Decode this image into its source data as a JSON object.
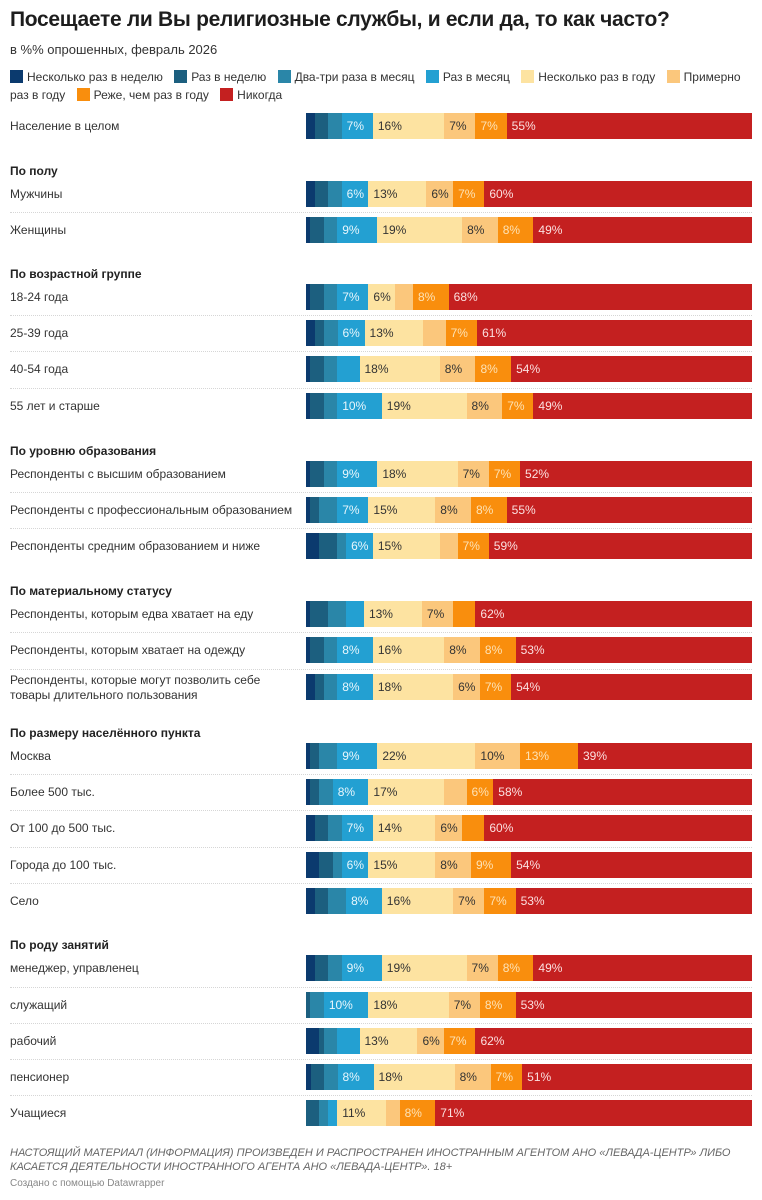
{
  "chart_data": {
    "type": "bar",
    "orientation": "horizontal-stacked-100",
    "title": "Посещаете ли Вы религиозные службы, и если да, то как часто?",
    "subtitle": "в %% опрошенных, февраль 2026",
    "xlabel": "",
    "ylabel": "",
    "xlim": [
      0,
      100
    ],
    "legend_position": "top",
    "series": [
      {
        "name": "Несколько раз в неделю",
        "color": "#0b3a6e",
        "label_color": "#ffffff"
      },
      {
        "name": "Раз в неделю",
        "color": "#1c5f7f",
        "label_color": "#ffffff"
      },
      {
        "name": "Два-три раза в месяц",
        "color": "#2a86a8",
        "label_color": "#ffffff"
      },
      {
        "name": "Раз в месяц",
        "color": "#23a0d2",
        "label_color": "#e8f6fc"
      },
      {
        "name": "Несколько раз в году",
        "color": "#fde3a1",
        "label_color": "#333333"
      },
      {
        "name": "Примерно раз в году",
        "color": "#fbc77c",
        "label_color": "#333333"
      },
      {
        "name": "Реже, чем раз в году",
        "color": "#f98e0d",
        "label_color": "#fde2b5"
      },
      {
        "name": "Никогда",
        "color": "#c42020",
        "label_color": "#fbe0e0"
      }
    ],
    "groups": [
      {
        "title": "",
        "rows": [
          {
            "label": "Население в целом",
            "values": [
              2,
              3,
              3,
              7,
              16,
              7,
              7,
              55
            ],
            "labeled": [
              false,
              false,
              false,
              true,
              true,
              true,
              true,
              true
            ]
          }
        ]
      },
      {
        "title": "По полу",
        "rows": [
          {
            "label": "Мужчины",
            "values": [
              2,
              3,
              3,
              6,
              13,
              6,
              7,
              60
            ],
            "labeled": [
              false,
              false,
              false,
              true,
              true,
              true,
              true,
              true
            ]
          },
          {
            "label": "Женщины",
            "values": [
              1,
              3,
              3,
              9,
              19,
              8,
              8,
              49
            ],
            "labeled": [
              false,
              false,
              false,
              true,
              true,
              true,
              true,
              true
            ]
          }
        ]
      },
      {
        "title": "По возрастной группе",
        "rows": [
          {
            "label": "18-24 года",
            "values": [
              1,
              3,
              3,
              7,
              6,
              4,
              8,
              68
            ],
            "labeled": [
              false,
              false,
              false,
              true,
              true,
              false,
              true,
              true
            ]
          },
          {
            "label": "25-39 года",
            "values": [
              2,
              2,
              3,
              6,
              13,
              5,
              7,
              61
            ],
            "labeled": [
              false,
              false,
              false,
              true,
              true,
              false,
              true,
              true
            ]
          },
          {
            "label": "40-54 года",
            "values": [
              1,
              3,
              3,
              5,
              18,
              8,
              8,
              54
            ],
            "labeled": [
              false,
              false,
              false,
              false,
              true,
              true,
              true,
              true
            ]
          },
          {
            "label": "55 лет и старше",
            "values": [
              1,
              3,
              3,
              10,
              19,
              8,
              7,
              49
            ],
            "labeled": [
              false,
              false,
              false,
              true,
              true,
              true,
              true,
              true
            ]
          }
        ]
      },
      {
        "title": "По уровню образования",
        "rows": [
          {
            "label": "Респонденты с высшим образованием",
            "values": [
              1,
              3,
              3,
              9,
              18,
              7,
              7,
              52
            ],
            "labeled": [
              false,
              false,
              false,
              true,
              true,
              true,
              true,
              true
            ]
          },
          {
            "label": "Респонденты с профессиональным образованием",
            "values": [
              1,
              2,
              4,
              7,
              15,
              8,
              8,
              55
            ],
            "labeled": [
              false,
              false,
              false,
              true,
              true,
              true,
              true,
              true
            ]
          },
          {
            "label": "Респонденты средним образованием и ниже",
            "values": [
              3,
              4,
              2,
              6,
              15,
              4,
              7,
              59
            ],
            "labeled": [
              false,
              false,
              false,
              true,
              true,
              false,
              true,
              true
            ]
          }
        ]
      },
      {
        "title": "По материальному статусу",
        "rows": [
          {
            "label": "Респонденты, которым едва хватает на еду",
            "values": [
              1,
              4,
              4,
              4,
              13,
              7,
              5,
              62
            ],
            "labeled": [
              false,
              false,
              false,
              false,
              true,
              true,
              false,
              true
            ]
          },
          {
            "label": "Респонденты, которым хватает на одежду",
            "values": [
              1,
              3,
              3,
              8,
              16,
              8,
              8,
              53
            ],
            "labeled": [
              false,
              false,
              false,
              true,
              true,
              true,
              true,
              true
            ]
          },
          {
            "label": "Респонденты, которые могут позволить себе товары длительного пользования",
            "values": [
              2,
              2,
              3,
              8,
              18,
              6,
              7,
              54
            ],
            "labeled": [
              false,
              false,
              false,
              true,
              true,
              true,
              true,
              true
            ]
          }
        ]
      },
      {
        "title": "По размеру населённого пункта",
        "rows": [
          {
            "label": "Москва",
            "values": [
              1,
              2,
              4,
              9,
              22,
              10,
              13,
              39
            ],
            "labeled": [
              false,
              false,
              false,
              true,
              true,
              true,
              true,
              true
            ]
          },
          {
            "label": "Более 500 тыс.",
            "values": [
              1,
              2,
              3,
              8,
              17,
              5,
              6,
              58
            ],
            "labeled": [
              false,
              false,
              false,
              true,
              true,
              false,
              true,
              true
            ]
          },
          {
            "label": "От 100 до 500 тыс.",
            "values": [
              2,
              3,
              3,
              7,
              14,
              6,
              5,
              60
            ],
            "labeled": [
              false,
              false,
              false,
              true,
              true,
              true,
              false,
              true
            ]
          },
          {
            "label": "Города до 100 тыс.",
            "values": [
              3,
              3,
              2,
              6,
              15,
              8,
              9,
              54
            ],
            "labeled": [
              false,
              false,
              false,
              true,
              true,
              true,
              true,
              true
            ]
          },
          {
            "label": "Село",
            "values": [
              2,
              3,
              4,
              8,
              16,
              7,
              7,
              53
            ],
            "labeled": [
              false,
              false,
              false,
              true,
              true,
              true,
              true,
              true
            ]
          }
        ]
      },
      {
        "title": "По роду занятий",
        "rows": [
          {
            "label": "менеджер, управленец",
            "values": [
              2,
              3,
              3,
              9,
              19,
              7,
              8,
              49
            ],
            "labeled": [
              false,
              false,
              false,
              true,
              true,
              true,
              true,
              true
            ]
          },
          {
            "label": "служащий",
            "values": [
              0,
              1,
              3,
              10,
              18,
              7,
              8,
              53
            ],
            "labeled": [
              false,
              false,
              false,
              true,
              true,
              true,
              true,
              true
            ]
          },
          {
            "label": "рабочий",
            "values": [
              3,
              1,
              3,
              5,
              13,
              6,
              7,
              62
            ],
            "labeled": [
              false,
              false,
              false,
              false,
              true,
              true,
              true,
              true
            ]
          },
          {
            "label": "пенсионер",
            "values": [
              1,
              3,
              3,
              8,
              18,
              8,
              7,
              51
            ],
            "labeled": [
              false,
              false,
              false,
              true,
              true,
              true,
              true,
              true
            ]
          },
          {
            "label": "Учащиеся",
            "values": [
              0,
              3,
              2,
              2,
              11,
              3,
              8,
              71
            ],
            "labeled": [
              false,
              false,
              false,
              false,
              true,
              false,
              true,
              true
            ]
          }
        ]
      }
    ]
  },
  "footer": {
    "note": "НАСТОЯЩИЙ МАТЕРИАЛ (ИНФОРМАЦИЯ) ПРОИЗВЕДЕН И РАСПРОСТРАНЕН ИНОСТРАННЫМ АГЕНТОМ АНО «ЛЕВАДА-ЦЕНТР» ЛИБО КАСАЕТСЯ ДЕЯТЕЛЬНОСТИ ИНОСТРАННОГО АГЕНТА АНО «ЛЕВАДА-ЦЕНТР». 18+",
    "credit": "Создано с помощью Datawrapper"
  }
}
